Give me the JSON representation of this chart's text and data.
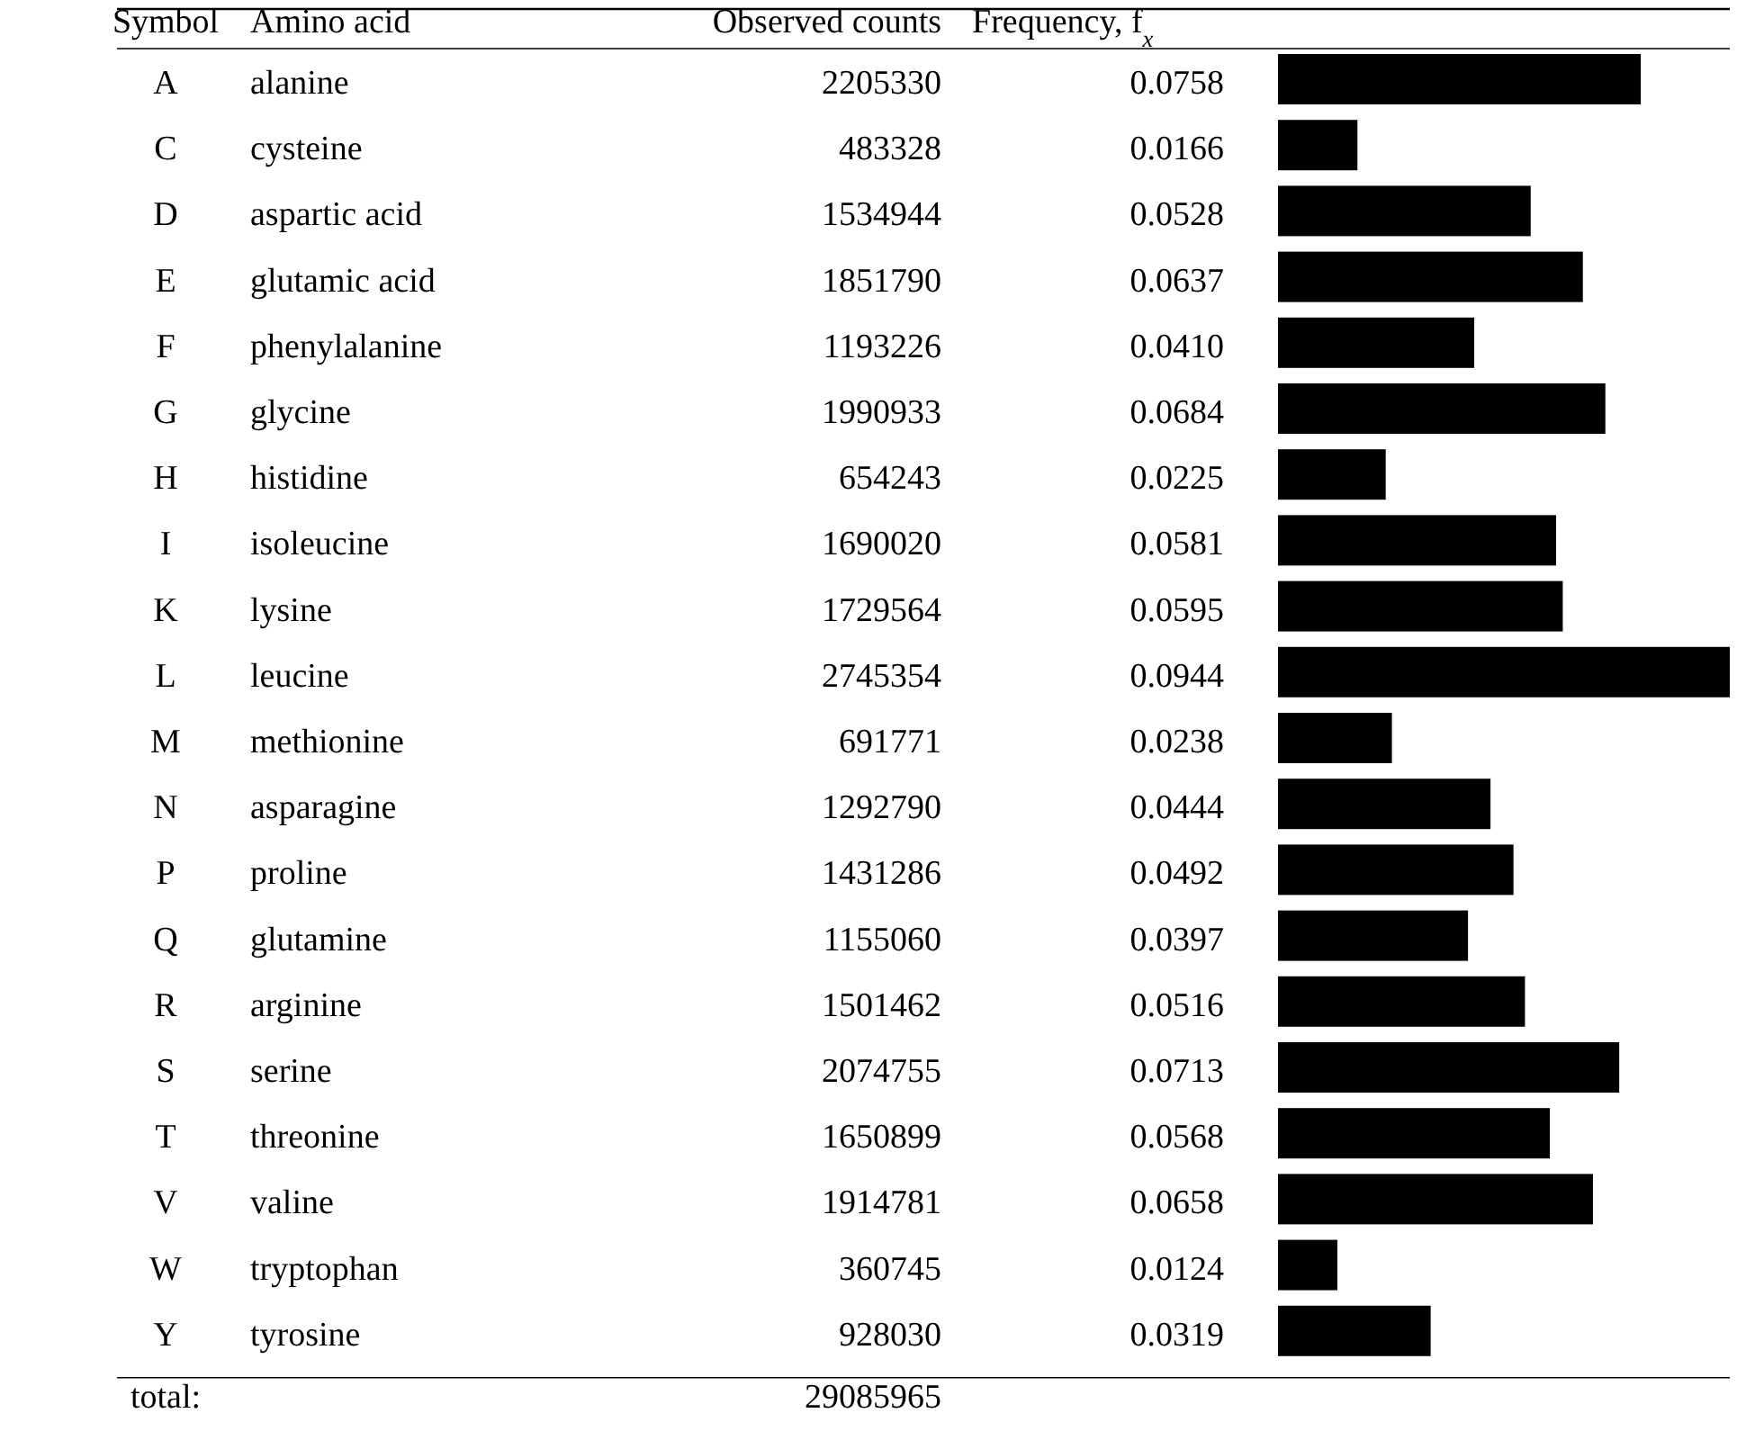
{
  "chart_data": {
    "type": "bar",
    "orientation": "horizontal",
    "ylabel": "Symbol",
    "xlabel": "Frequency, f$_{x}$",
    "categories": [
      "A",
      "C",
      "D",
      "E",
      "F",
      "G",
      "H",
      "I",
      "K",
      "L",
      "M",
      "N",
      "P",
      "Q",
      "R",
      "S",
      "T",
      "V",
      "W",
      "Y"
    ],
    "values": [
      0.0758,
      0.0166,
      0.0528,
      0.0637,
      0.041,
      0.0684,
      0.0225,
      0.0581,
      0.0595,
      0.0944,
      0.0238,
      0.0444,
      0.0492,
      0.0397,
      0.0516,
      0.0713,
      0.0568,
      0.0658,
      0.0124,
      0.0319
    ],
    "value_labels": [
      "0.0758",
      "0.0166",
      "0.0528",
      "0.0637",
      "0.0410",
      "0.0684",
      "0.0225",
      "0.0581",
      "0.0595",
      "0.0944",
      "0.0238",
      "0.0444",
      "0.0492",
      "0.0397",
      "0.0516",
      "0.0713",
      "0.0568",
      "0.0658",
      "0.0124",
      "0.0319"
    ],
    "color": "#000000",
    "annotations": [
      "Amino acid",
      "Observed counts",
      "alanine",
      "2205330",
      "cysteine",
      "483328",
      "aspartic acid",
      "1534944",
      "glutamic acid",
      "1851790",
      "phenylalanine",
      "1193226",
      "glycine",
      "1990933",
      "histidine",
      "654243",
      "isoleucine",
      "1690020",
      "lysine",
      "1729564",
      "leucine",
      "2745354",
      "methionine",
      "691771",
      "asparagine",
      "1292790",
      "proline",
      "1431286",
      "glutamine",
      "1155060",
      "arginine",
      "1501462",
      "serine",
      "2074755",
      "threonine",
      "1650899",
      "valine",
      "1914781",
      "tryptophan",
      "360745",
      "tyrosine",
      "928030",
      "total:",
      "29085965"
    ]
  }
}
